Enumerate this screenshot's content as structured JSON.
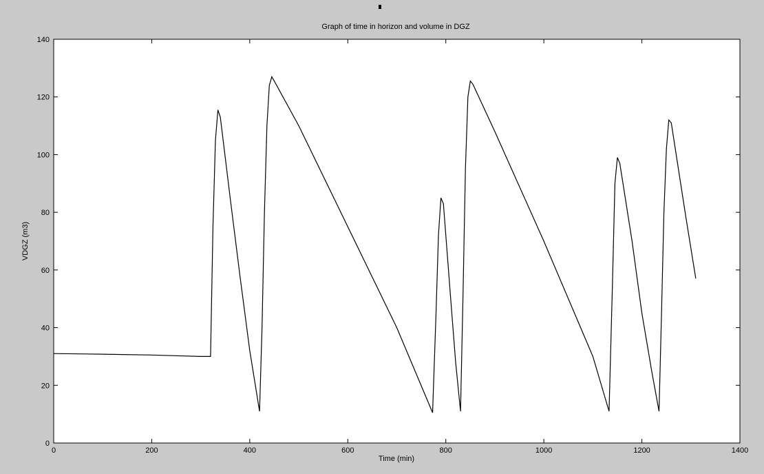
{
  "figure": {
    "background": "#c9c9c9",
    "plot_background": "#ffffff",
    "line_color": "#000000"
  },
  "chart_data": {
    "type": "line",
    "title": "Graph of time in horizon and volume in DGZ",
    "xlabel": "Time (min)",
    "ylabel": "VDGZ (m3)",
    "xlim": [
      0,
      1400
    ],
    "ylim": [
      0,
      140
    ],
    "xticks": [
      0,
      200,
      400,
      600,
      800,
      1000,
      1200,
      1400
    ],
    "yticks": [
      0,
      20,
      40,
      60,
      80,
      100,
      120,
      140
    ],
    "grid": false,
    "legend": "none",
    "series": [
      {
        "points": [
          [
            0,
            31
          ],
          [
            100,
            30.8
          ],
          [
            200,
            30.5
          ],
          [
            300,
            30
          ],
          [
            320,
            30
          ],
          [
            325,
            75
          ],
          [
            330,
            105
          ],
          [
            335,
            115.5
          ],
          [
            340,
            113
          ],
          [
            360,
            85
          ],
          [
            380,
            58
          ],
          [
            400,
            32
          ],
          [
            420,
            11
          ],
          [
            425,
            40
          ],
          [
            430,
            80
          ],
          [
            435,
            110
          ],
          [
            440,
            124
          ],
          [
            445,
            127
          ],
          [
            450,
            125.5
          ],
          [
            500,
            110
          ],
          [
            600,
            75
          ],
          [
            700,
            40
          ],
          [
            773,
            10.5
          ],
          [
            780,
            45
          ],
          [
            785,
            72
          ],
          [
            790,
            85
          ],
          [
            795,
            83
          ],
          [
            810,
            50
          ],
          [
            820,
            28
          ],
          [
            830,
            11
          ],
          [
            835,
            50
          ],
          [
            840,
            95
          ],
          [
            845,
            120
          ],
          [
            850,
            125.5
          ],
          [
            855,
            124.5
          ],
          [
            900,
            108
          ],
          [
            1000,
            70
          ],
          [
            1100,
            30
          ],
          [
            1133,
            11
          ],
          [
            1140,
            55
          ],
          [
            1145,
            90
          ],
          [
            1150,
            99
          ],
          [
            1155,
            97
          ],
          [
            1180,
            70
          ],
          [
            1200,
            45
          ],
          [
            1220,
            25
          ],
          [
            1235,
            11
          ],
          [
            1240,
            45
          ],
          [
            1245,
            80
          ],
          [
            1250,
            102
          ],
          [
            1255,
            112
          ],
          [
            1260,
            111
          ],
          [
            1270,
            100
          ],
          [
            1290,
            78
          ],
          [
            1310,
            57
          ]
        ]
      }
    ]
  }
}
